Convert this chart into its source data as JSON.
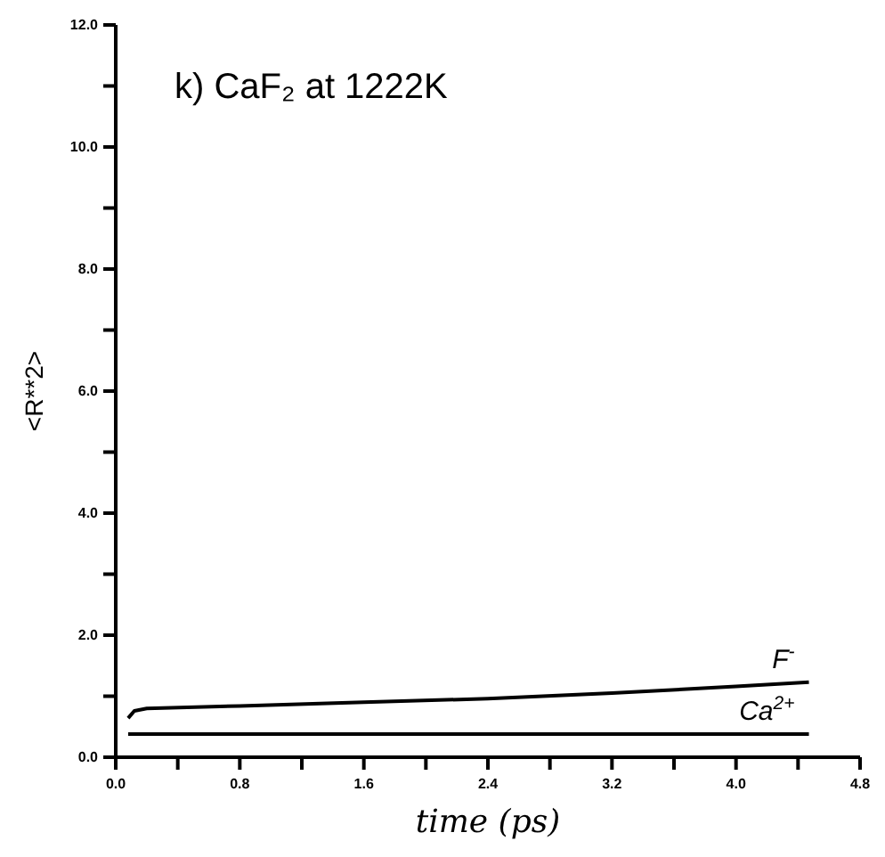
{
  "chart_data": {
    "type": "line",
    "title": "k) CaF₂ at  1222K",
    "xlabel": "time (ps)",
    "ylabel": "<R**2>",
    "xlim": [
      0,
      4.8
    ],
    "xticks": [
      {
        "value": 0,
        "label": "0.0"
      },
      {
        "value": 0.4,
        "label": null
      },
      {
        "value": 0.8,
        "label": "0.8"
      },
      {
        "value": 1.2,
        "label": null
      },
      {
        "value": 1.6,
        "label": "1.6"
      },
      {
        "value": 2.0,
        "label": null
      },
      {
        "value": 2.4,
        "label": "2.4"
      },
      {
        "value": 2.8,
        "label": null
      },
      {
        "value": 3.2,
        "label": "3.2"
      },
      {
        "value": 3.6,
        "label": null
      },
      {
        "value": 4.0,
        "label": "4.0"
      },
      {
        "value": 4.4,
        "label": null
      },
      {
        "value": 4.8,
        "label": "4.8"
      }
    ],
    "ylim": [
      0,
      12
    ],
    "yticks": [
      {
        "value": 0,
        "label": "0.0"
      },
      {
        "value": 1,
        "label": null
      },
      {
        "value": 2,
        "label": "2.0"
      },
      {
        "value": 3,
        "label": null
      },
      {
        "value": 4,
        "label": "4.0"
      },
      {
        "value": 5,
        "label": null
      },
      {
        "value": 6,
        "label": "6.0"
      },
      {
        "value": 7,
        "label": null
      },
      {
        "value": 8,
        "label": "8.0"
      },
      {
        "value": 9,
        "label": null
      },
      {
        "value": 10,
        "label": "10.0"
      },
      {
        "value": 11,
        "label": null
      },
      {
        "value": 12,
        "label": "12.0"
      }
    ],
    "grid": false,
    "legend": false,
    "line_style": "solid",
    "marker": "none",
    "series": [
      {
        "name": "F$^{-}$",
        "color": "#000000",
        "x": [
          0.08,
          0.12,
          0.2,
          0.8,
          1.6,
          2.4,
          3.2,
          4.0,
          4.47
        ],
        "values": [
          0.64,
          0.76,
          0.8,
          0.84,
          0.9,
          0.96,
          1.05,
          1.16,
          1.23
        ]
      },
      {
        "name": "Ca$^{2+}$",
        "color": "#000000",
        "x": [
          0.08,
          0.8,
          1.6,
          2.4,
          3.2,
          4.0,
          4.47
        ],
        "values": [
          0.38,
          0.38,
          0.38,
          0.38,
          0.38,
          0.38,
          0.38
        ]
      }
    ]
  }
}
